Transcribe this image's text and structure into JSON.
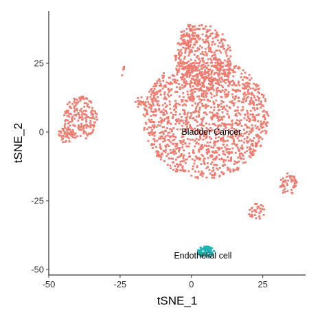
{
  "chart_data": {
    "type": "scatter",
    "title": "",
    "xlabel": "tSNE_1",
    "ylabel": "tSNE_2",
    "xlim": [
      -50,
      40
    ],
    "ylim": [
      -52,
      44
    ],
    "x_ticks": [
      -50,
      -25,
      0,
      25
    ],
    "x_tick_labels": [
      "-50",
      "-25",
      "0",
      "25"
    ],
    "y_ticks": [
      -50,
      -25,
      0,
      25
    ],
    "y_tick_labels": [
      "-50",
      "-25",
      "0",
      "25"
    ],
    "grid": false,
    "legend": "none",
    "series": [
      {
        "name": "Bladder Cancer",
        "color": "#f07b6f",
        "label_position": [
          7,
          0
        ],
        "regions": [
          {
            "center": [
              5,
              5
            ],
            "radius": [
              22,
              22
            ],
            "count": 1500
          },
          {
            "center": [
              4,
              27
            ],
            "radius": [
              10,
              12
            ],
            "count": 380
          },
          {
            "center": [
              -1,
              34
            ],
            "radius": [
              3,
              5
            ],
            "count": 60
          },
          {
            "center": [
              -39,
              5
            ],
            "radius": [
              6,
              8
            ],
            "count": 190
          },
          {
            "center": [
              -44,
              -1
            ],
            "radius": [
              3,
              3
            ],
            "count": 50
          },
          {
            "center": [
              -18,
              11
            ],
            "radius": [
              2,
              2
            ],
            "count": 18
          },
          {
            "center": [
              -24,
              22
            ],
            "radius": [
              1,
              2
            ],
            "count": 5
          },
          {
            "center": [
              34,
              -19
            ],
            "radius": [
              3,
              4
            ],
            "count": 55
          },
          {
            "center": [
              23,
              -29
            ],
            "radius": [
              3,
              3
            ],
            "count": 35
          }
        ]
      },
      {
        "name": "Endothelial cell",
        "color": "#1fb5b5",
        "label_position": [
          4,
          -45
        ],
        "regions": [
          {
            "center": [
              5,
              -43.5
            ],
            "radius": [
              3,
              2
            ],
            "count": 110
          }
        ]
      }
    ]
  }
}
